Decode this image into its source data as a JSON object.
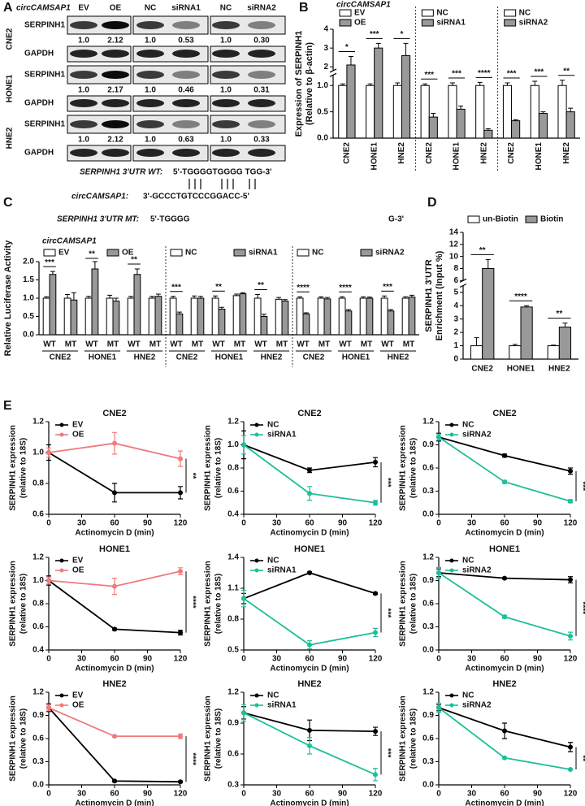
{
  "panel_labels": [
    "A",
    "B",
    "C",
    "D",
    "E"
  ],
  "blot": {
    "label": "circCAMSAP1",
    "lanes": [
      "EV",
      "OE",
      "NC",
      "siRNA1",
      "NC",
      "siRNA2"
    ],
    "rows": [
      {
        "cell": "CNE2",
        "target": "SERPINH1",
        "quant": [
          "1.0",
          "2.12",
          "1.0",
          "0.53",
          "1.0",
          "0.30"
        ],
        "loading": "GAPDH"
      },
      {
        "cell": "HONE1",
        "target": "SERPINH1",
        "quant": [
          "1.0",
          "2.17",
          "1.0",
          "0.46",
          "1.0",
          "0.31"
        ],
        "loading": "GAPDH"
      },
      {
        "cell": "HNE2",
        "target": "SERPINH1",
        "quant": [
          "1.0",
          "2.12",
          "1.0",
          "0.63",
          "1.0",
          "0.33"
        ],
        "loading": "GAPDH"
      }
    ]
  },
  "sequence": {
    "wt_label": "SERPINH1 3'UTR WT:",
    "wt": "5'-TGGGGTGGGG TGG-3'",
    "circ_label": "circCAMSAP1:",
    "circ": "3'-GCCCTGTCCCGGACC-5'",
    "mt_label": "SERPINH1 3'UTR MT:",
    "mt": "5'-TGGGG",
    "mt_end": "G-3'"
  },
  "chart_data": [
    {
      "type": "bar",
      "ylabel": [
        "Expression of SERPINH1",
        "(Relative to β-actin)"
      ],
      "ylim": [
        0,
        4
      ],
      "ybreak": [
        1.2,
        1.8
      ],
      "yticks": [
        {
          "value": 0,
          "label": "0.0"
        },
        0.5,
        {
          "value": 1,
          "label": "1.0"
        },
        2,
        3,
        4
      ],
      "sections": [
        {
          "legend_title": "circCAMSAP1",
          "categories": [
            "CNE2",
            "HONE1",
            "HNE2"
          ],
          "series": [
            {
              "name": "EV",
              "color": "#ffffff",
              "values": [
                1,
                1,
                1
              ],
              "errors": [
                0.03,
                0.03,
                0.05
              ]
            },
            {
              "name": "OE",
              "color": "#999999",
              "values": [
                2.1,
                3.0,
                2.6
              ],
              "errors": [
                0.45,
                0.25,
                0.65
              ]
            }
          ],
          "significance": [
            "*",
            "***",
            "*"
          ]
        },
        {
          "categories": [
            "CNE2",
            "HONE1",
            "HNE2"
          ],
          "series": [
            {
              "name": "NC",
              "color": "#ffffff",
              "values": [
                1,
                1,
                1
              ],
              "errors": [
                0.03,
                0.05,
                0.06
              ]
            },
            {
              "name": "siRNA1",
              "color": "#999999",
              "values": [
                0.4,
                0.55,
                0.15
              ],
              "errors": [
                0.07,
                0.06,
                0.03
              ]
            }
          ],
          "significance": [
            "***",
            "***",
            "****"
          ]
        },
        {
          "categories": [
            "CNE2",
            "HONE1",
            "HNE2"
          ],
          "series": [
            {
              "name": "NC",
              "color": "#ffffff",
              "values": [
                1,
                1,
                1
              ],
              "errors": [
                0.05,
                0.08,
                0.1
              ]
            },
            {
              "name": "siRNA2",
              "color": "#999999",
              "values": [
                0.33,
                0.47,
                0.5
              ],
              "errors": [
                0.02,
                0.03,
                0.07
              ]
            }
          ],
          "significance": [
            "***",
            "***",
            "**"
          ]
        }
      ]
    },
    {
      "type": "bar",
      "ylabel": [
        "Relative Luciferase Activity"
      ],
      "ylim": [
        0,
        2
      ],
      "yticks": [
        {
          "value": 0,
          "label": "0.0"
        },
        0.5,
        {
          "value": 1,
          "label": "1.0"
        },
        1.5,
        {
          "value": 2,
          "label": "2.0"
        }
      ],
      "sections": [
        {
          "legend_title": "circCAMSAP1",
          "categories": [
            "WT",
            "MT",
            "WT",
            "MT",
            "WT",
            "MT"
          ],
          "groups": [
            "CNE2",
            "HONE1",
            "HNE2"
          ],
          "series": [
            {
              "name": "EV",
              "color": "#ffffff",
              "values": [
                1,
                1,
                1,
                1,
                1,
                1
              ],
              "errors": [
                0.04,
                0.1,
                0.05,
                0.08,
                0.05,
                0.05
              ]
            },
            {
              "name": "OE",
              "color": "#999999",
              "values": [
                1.65,
                0.95,
                1.8,
                0.92,
                1.65,
                1.05
              ],
              "errors": [
                0.08,
                0.2,
                0.2,
                0.08,
                0.15,
                0.06
              ]
            }
          ],
          "significance": [
            "***",
            null,
            "**",
            null,
            "**",
            null
          ]
        },
        {
          "categories": [
            "WT",
            "MT",
            "WT",
            "MT",
            "WT",
            "MT"
          ],
          "groups": [
            "CNE2",
            "HONE1",
            "HNE2"
          ],
          "series": [
            {
              "name": "NC",
              "color": "#ffffff",
              "values": [
                1,
                1,
                1,
                1.07,
                1,
                0.97
              ],
              "errors": [
                0.05,
                0.06,
                0.06,
                0.04,
                0.1,
                0.05
              ]
            },
            {
              "name": "siRNA1",
              "color": "#999999",
              "values": [
                0.57,
                1,
                0.7,
                1.12,
                0.5,
                0.92
              ],
              "errors": [
                0.05,
                0.05,
                0.05,
                0.03,
                0.06,
                0.04
              ]
            }
          ],
          "significance": [
            "***",
            null,
            "**",
            null,
            "**",
            null
          ]
        },
        {
          "categories": [
            "WT",
            "MT",
            "WT",
            "MT",
            "WT",
            "MT"
          ],
          "groups": [
            "CNE2",
            "HONE1",
            "HNE2"
          ],
          "series": [
            {
              "name": "NC",
              "color": "#ffffff",
              "values": [
                1,
                1,
                1,
                1,
                1,
                1
              ],
              "errors": [
                0.04,
                0.04,
                0.04,
                0.04,
                0.06,
                0.04
              ]
            },
            {
              "name": "siRNA2",
              "color": "#999999",
              "values": [
                0.57,
                0.98,
                0.65,
                1,
                0.65,
                1.03
              ],
              "errors": [
                0.03,
                0.04,
                0.04,
                0.03,
                0.04,
                0.05
              ]
            }
          ],
          "significance": [
            "****",
            null,
            "****",
            null,
            "***",
            null
          ]
        }
      ]
    },
    {
      "type": "bar",
      "ylabel": [
        "SERPINH1 3'UTR",
        "Enrichment (Input %)"
      ],
      "ylim": [
        0,
        14
      ],
      "ybreak": [
        5.5,
        6
      ],
      "yticks": [
        0,
        1,
        2,
        3,
        4,
        5,
        6,
        8,
        10,
        12,
        14
      ],
      "sections": [
        {
          "categories": [
            "CNE2",
            "HONE1",
            "HNE2"
          ],
          "series": [
            {
              "name": "un-Biotin",
              "color": "#ffffff",
              "values": [
                1,
                1,
                1
              ],
              "errors": [
                0.6,
                0.1,
                0.05
              ]
            },
            {
              "name": "Biotin",
              "color": "#999999",
              "values": [
                8,
                3.9,
                2.4
              ],
              "errors": [
                1.5,
                0.1,
                0.3
              ]
            }
          ],
          "significance": [
            "**",
            "****",
            "**"
          ]
        }
      ]
    },
    {
      "type": "line",
      "title": "CNE2",
      "x": [
        0,
        60,
        120
      ],
      "xlim": [
        0,
        120
      ],
      "xticks": [
        0,
        30,
        60,
        90,
        120
      ],
      "ylim": [
        0.6,
        1.2
      ],
      "yticks": [
        0.6,
        0.8,
        {
          "value": 1,
          "label": "1.0"
        },
        1.2
      ],
      "xlabel": "Actinomycin D (min)",
      "ylabel": [
        "SERPINH1 expression",
        "(relative to 18S)"
      ],
      "series": [
        {
          "name": "EV",
          "color": "#000000",
          "values": [
            1,
            0.74,
            0.74
          ],
          "errors": [
            0.05,
            0.06,
            0.04
          ]
        },
        {
          "name": "OE",
          "color": "#f07b7b",
          "values": [
            1,
            1.06,
            0.96
          ],
          "errors": [
            0.03,
            0.07,
            0.05
          ]
        }
      ],
      "significance": "**"
    },
    {
      "type": "line",
      "title": "CNE2",
      "x": [
        0,
        60,
        120
      ],
      "xlim": [
        0,
        120
      ],
      "xticks": [
        0,
        30,
        60,
        90,
        120
      ],
      "ylim": [
        0.4,
        1.2
      ],
      "yticks": [
        0.4,
        0.6,
        0.8,
        {
          "value": 1,
          "label": "1.0"
        },
        1.2
      ],
      "xlabel": "Actinomycin D (min)",
      "ylabel": [
        "SERPINH1 expression",
        "(relative to 18S)"
      ],
      "series": [
        {
          "name": "NC",
          "color": "#000000",
          "values": [
            1,
            0.78,
            0.85
          ],
          "errors": [
            0.12,
            0.02,
            0.04
          ]
        },
        {
          "name": "siRNA1",
          "color": "#1dbf9a",
          "values": [
            1,
            0.58,
            0.5
          ],
          "errors": [
            0.08,
            0.06,
            0.02
          ]
        }
      ],
      "significance": "***"
    },
    {
      "type": "line",
      "title": "CNE2",
      "x": [
        0,
        60,
        120
      ],
      "xlim": [
        0,
        120
      ],
      "xticks": [
        0,
        30,
        60,
        90,
        120
      ],
      "ylim": [
        0,
        1.2
      ],
      "yticks": [
        {
          "value": 0,
          "label": "0.0"
        },
        0.3,
        0.6,
        0.9,
        1.2
      ],
      "xlabel": "Actinomycin D (min)",
      "ylabel": [
        "SERPINH1 expression",
        "(relative to 18S)"
      ],
      "series": [
        {
          "name": "NC",
          "color": "#000000",
          "values": [
            1,
            0.76,
            0.56
          ],
          "errors": [
            0.05,
            0.02,
            0.04
          ]
        },
        {
          "name": "siRNA2",
          "color": "#1dbf9a",
          "values": [
            1,
            0.42,
            0.17
          ],
          "errors": [
            0.04,
            0.02,
            0.02
          ]
        }
      ],
      "significance": "***"
    },
    {
      "type": "line",
      "title": "HONE1",
      "x": [
        0,
        60,
        120
      ],
      "xlim": [
        0,
        120
      ],
      "xticks": [
        0,
        30,
        60,
        90,
        120
      ],
      "ylim": [
        0.4,
        1.2
      ],
      "yticks": [
        0.4,
        0.6,
        0.8,
        {
          "value": 1,
          "label": "1.0"
        },
        1.2
      ],
      "xlabel": "Actinomycin D (min)",
      "ylabel": [
        "SERPINH1 expression",
        "(relative to 18S)"
      ],
      "series": [
        {
          "name": "EV",
          "color": "#000000",
          "values": [
            1,
            0.58,
            0.55
          ],
          "errors": [
            0.04,
            0.01,
            0.02
          ]
        },
        {
          "name": "OE",
          "color": "#f07b7b",
          "values": [
            1,
            0.95,
            1.08
          ],
          "errors": [
            0.03,
            0.07,
            0.03
          ]
        }
      ],
      "significance": "****"
    },
    {
      "type": "line",
      "title": "HONE1",
      "x": [
        0,
        60,
        120
      ],
      "xlim": [
        0,
        120
      ],
      "xticks": [
        0,
        30,
        60,
        90,
        120
      ],
      "ylim": [
        0.5,
        1.4
      ],
      "yticks": [
        0.5,
        0.8,
        1.1,
        1.4
      ],
      "xlabel": "Actinomycin D (min)",
      "ylabel": [
        "SERPINH1 expression",
        "(relative to 18S)"
      ],
      "series": [
        {
          "name": "NC",
          "color": "#000000",
          "values": [
            1,
            1.25,
            1.05
          ],
          "errors": [
            0.05,
            0.01,
            0.01
          ]
        },
        {
          "name": "siRNA1",
          "color": "#1dbf9a",
          "values": [
            1,
            0.55,
            0.67
          ],
          "errors": [
            0.08,
            0.04,
            0.04
          ]
        }
      ],
      "significance": "***"
    },
    {
      "type": "line",
      "title": "HONE1",
      "x": [
        0,
        60,
        120
      ],
      "xlim": [
        0,
        120
      ],
      "xticks": [
        0,
        30,
        60,
        90,
        120
      ],
      "ylim": [
        0,
        1.2
      ],
      "yticks": [
        {
          "value": 0,
          "label": "0.0"
        },
        0.3,
        0.6,
        0.9,
        1.2
      ],
      "xlabel": "Actinomycin D (min)",
      "ylabel": [
        "SERPINH1 expression",
        "(relative to 18S)"
      ],
      "series": [
        {
          "name": "NC",
          "color": "#000000",
          "values": [
            1,
            0.93,
            0.91
          ],
          "errors": [
            0.05,
            0.01,
            0.04
          ]
        },
        {
          "name": "siRNA2",
          "color": "#1dbf9a",
          "values": [
            1,
            0.43,
            0.18
          ],
          "errors": [
            0.07,
            0.02,
            0.05
          ]
        }
      ],
      "significance": "****"
    },
    {
      "type": "line",
      "title": "HNE2",
      "x": [
        0,
        60,
        120
      ],
      "xlim": [
        0,
        120
      ],
      "xticks": [
        0,
        30,
        60,
        90,
        120
      ],
      "ylim": [
        0,
        1.2
      ],
      "yticks": [
        {
          "value": 0,
          "label": "0.0"
        },
        0.3,
        0.6,
        0.9,
        1.2
      ],
      "xlabel": "Actinomycin D (min)",
      "ylabel": [
        "SERPINH1 expression",
        "(relative to 18S)"
      ],
      "series": [
        {
          "name": "EV",
          "color": "#000000",
          "values": [
            1,
            0.05,
            0.04
          ],
          "errors": [
            0.05,
            0.01,
            0.01
          ]
        },
        {
          "name": "OE",
          "color": "#f07b7b",
          "values": [
            1,
            0.63,
            0.63
          ],
          "errors": [
            0.04,
            0.01,
            0.03
          ]
        }
      ],
      "significance": "****"
    },
    {
      "type": "line",
      "title": "HNE2",
      "x": [
        0,
        60,
        120
      ],
      "xlim": [
        0,
        120
      ],
      "xticks": [
        0,
        30,
        60,
        90,
        120
      ],
      "ylim": [
        0.3,
        1.2
      ],
      "yticks": [
        0.3,
        0.6,
        0.9,
        1.2
      ],
      "xlabel": "Actinomycin D (min)",
      "ylabel": [
        "SERPINH1 expression",
        "(relative to 18S)"
      ],
      "series": [
        {
          "name": "NC",
          "color": "#000000",
          "values": [
            1,
            0.83,
            0.82
          ],
          "errors": [
            0.06,
            0.1,
            0.04
          ]
        },
        {
          "name": "siRNA1",
          "color": "#1dbf9a",
          "values": [
            1,
            0.68,
            0.4
          ],
          "errors": [
            0.08,
            0.08,
            0.06
          ]
        }
      ],
      "significance": "***"
    },
    {
      "type": "line",
      "title": "HNE2",
      "x": [
        0,
        60,
        120
      ],
      "xlim": [
        0,
        120
      ],
      "xticks": [
        0,
        30,
        60,
        90,
        120
      ],
      "ylim": [
        0,
        1.2
      ],
      "yticks": [
        {
          "value": 0,
          "label": "0.0"
        },
        0.3,
        0.6,
        0.9,
        1.2
      ],
      "xlabel": "Actinomycin D (min)",
      "ylabel": [
        "SERPINH1 expression",
        "(relative to 18S)"
      ],
      "series": [
        {
          "name": "NC",
          "color": "#000000",
          "values": [
            1,
            0.7,
            0.49
          ],
          "errors": [
            0.04,
            0.1,
            0.06
          ]
        },
        {
          "name": "siRNA2",
          "color": "#1dbf9a",
          "values": [
            1,
            0.35,
            0.2
          ],
          "errors": [
            0.06,
            0.01,
            0.01
          ]
        }
      ],
      "significance": "**"
    }
  ]
}
